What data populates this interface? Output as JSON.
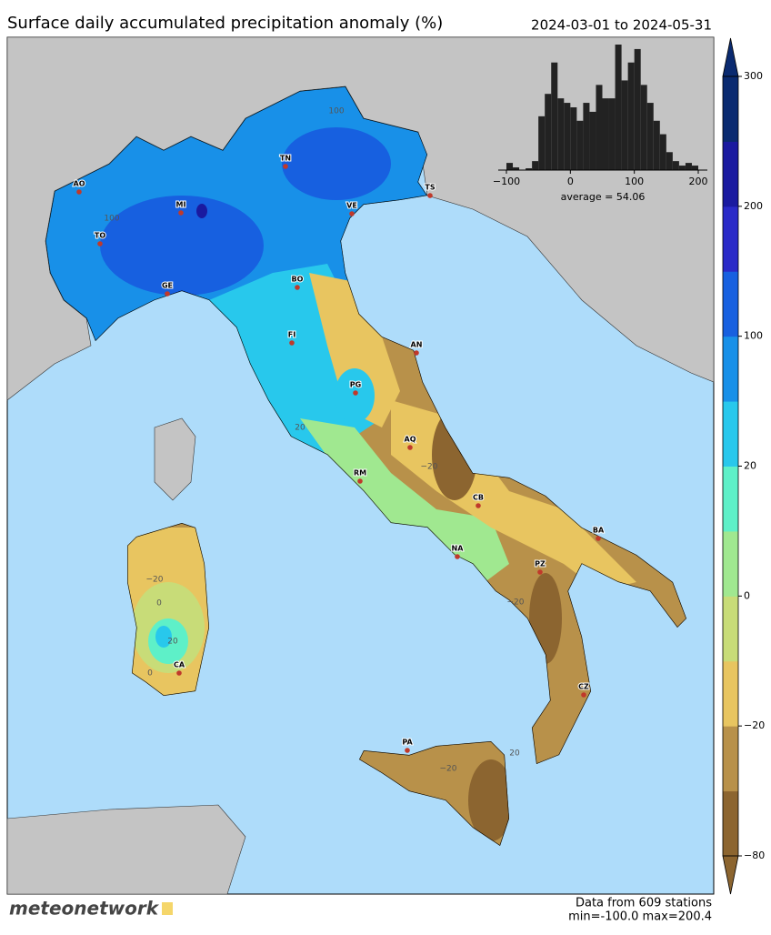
{
  "title": "Surface daily accumulated precipitation anomaly (%)",
  "period": "2024-03-01 to 2024-05-31",
  "colorbar": {
    "ticks": [
      {
        "value": -80,
        "label": "−80"
      },
      {
        "value": -20,
        "label": "−20"
      },
      0,
      20,
      100,
      200,
      300
    ],
    "colors": [
      "#8c6530",
      "#b8914a",
      "#e8c560",
      "#c8dc78",
      "#a0e890",
      "#5ef0c8",
      "#28c8ec",
      "#1890e8",
      "#1760e0",
      "#2a2ac8",
      "#1a1aa0",
      "#0a2a70"
    ]
  },
  "histogram": {
    "bins": [
      -100,
      -90,
      -80,
      -70,
      -60,
      -50,
      -40,
      -30,
      -20,
      -10,
      0,
      10,
      20,
      30,
      40,
      50,
      60,
      70,
      80,
      90,
      100,
      110,
      120,
      130,
      140,
      150,
      160,
      170,
      180,
      190,
      200
    ],
    "counts": [
      8,
      3,
      0,
      2,
      10,
      60,
      85,
      120,
      80,
      75,
      70,
      55,
      75,
      65,
      95,
      80,
      80,
      140,
      100,
      120,
      135,
      95,
      75,
      55,
      40,
      20,
      10,
      5,
      8,
      5
    ],
    "xticks": [
      {
        "value": -100,
        "label": "−100"
      },
      0,
      100,
      200
    ],
    "average_label": "average = 54.06"
  },
  "stations": [
    "AO",
    "TO",
    "MI",
    "TN",
    "VE",
    "TS",
    "BO",
    "GE",
    "FI",
    "AN",
    "PG",
    "AQ",
    "RM",
    "CB",
    "NA",
    "BA",
    "PZ",
    "CZ",
    "CA",
    "PA"
  ],
  "contour_labels": [
    "100",
    "100",
    "20",
    "0",
    "−20",
    "−20",
    "20",
    "0",
    "−20",
    "−20",
    "20"
  ],
  "footer": {
    "source": "Data from 609 stations",
    "range": "min=-100.0 max=200.4",
    "logo": "meteonetwork"
  }
}
